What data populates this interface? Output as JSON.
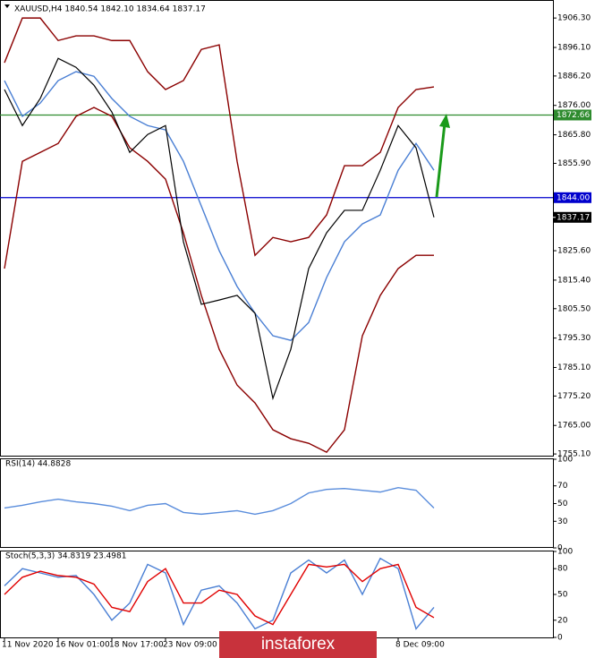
{
  "chart_data": [
    {
      "type": "line",
      "title": "XAUUSD,H4  1840.54 1842.10 1834.64 1837.17",
      "categories": [
        "11 Nov 2020",
        null,
        null,
        "16 Nov 01:00",
        null,
        null,
        "18 Nov 17:00",
        null,
        null,
        "23 Nov 09:00",
        null,
        null,
        null,
        null,
        null,
        null,
        null,
        null,
        null,
        null,
        null,
        null,
        "8 Dec 09:00",
        null,
        null
      ],
      "series": [
        {
          "color": "#8b0000",
          "values": [
            1890.8,
            1906.3,
            1906.3,
            1898.5,
            1900.1,
            1900.1,
            1898.5,
            1898.5,
            1887.7,
            1881.5,
            1884.6,
            1895.4,
            1897.0,
            1856.6,
            1824.0,
            1830.2,
            1828.7,
            1830.2,
            1838.0,
            1855.1,
            1855.1,
            1859.7,
            1875.3,
            1881.5,
            1882.4
          ]
        },
        {
          "color": "#8b0000",
          "values": [
            1819.4,
            1856.6,
            1859.7,
            1862.8,
            1872.2,
            1875.3,
            1872.2,
            1861.3,
            1856.6,
            1850.4,
            1831.8,
            1810.1,
            1791.4,
            1779.0,
            1772.8,
            1763.5,
            1760.4,
            1758.8,
            1755.7,
            1763.5,
            1796.1,
            1810.1,
            1819.4,
            1824.0,
            1824.0
          ]
        },
        {
          "color": "#4a7fd4",
          "values": [
            1884.6,
            1872.2,
            1876.8,
            1884.6,
            1887.7,
            1886.1,
            1878.4,
            1872.2,
            1869.0,
            1867.5,
            1856.6,
            1841.1,
            1825.6,
            1813.2,
            1803.9,
            1796.1,
            1794.5,
            1800.7,
            1816.3,
            1828.7,
            1834.9,
            1838.0,
            1853.5,
            1862.8,
            1853.5
          ]
        },
        {
          "color": "#000000",
          "values": [
            1881.5,
            1869.0,
            1878.4,
            1892.3,
            1889.2,
            1883.0,
            1873.7,
            1859.7,
            1865.9,
            1869.0,
            1828.7,
            1807.0,
            1808.5,
            1810.1,
            1803.9,
            1774.4,
            1791.4,
            1819.4,
            1831.8,
            1839.6,
            1839.6,
            1853.5,
            1869.0,
            1861.3,
            1837.17
          ]
        }
      ],
      "ylim": [
        1754.2,
        1911.0
      ],
      "yticks": [
        {
          "value": 1906.3,
          "label": "1906.30"
        },
        {
          "value": 1896.1,
          "label": "1896.10"
        },
        {
          "value": 1886.2,
          "label": "1886.20"
        },
        {
          "value": 1876,
          "label": "1876.00"
        },
        {
          "value": 1865.8,
          "label": "1865.80"
        },
        {
          "value": 1855.9,
          "label": "1855.90"
        },
        {
          "value": 1825.6,
          "label": "1825.60"
        },
        {
          "value": 1815.4,
          "label": "1815.40"
        },
        {
          "value": 1805.5,
          "label": "1805.50"
        },
        {
          "value": 1795.3,
          "label": "1795.30"
        },
        {
          "value": 1785.1,
          "label": "1785.10"
        },
        {
          "value": 1775.2,
          "label": "1775.20"
        },
        {
          "value": 1765,
          "label": "1765.00"
        },
        {
          "value": 1755.1,
          "label": "1755.10"
        }
      ],
      "hlines": [
        {
          "value": 1872.66,
          "color": "#2e8b2e"
        },
        {
          "value": 1844,
          "label": "1844.00",
          "color": "#0000cd"
        }
      ],
      "last_price": 1837.17
    },
    {
      "type": "line",
      "title": "RSI(14) 44.8828",
      "series": [
        {
          "color": "#5a8ddc",
          "values": [
            45,
            48,
            52,
            55,
            52,
            50,
            47,
            42,
            48,
            50,
            40,
            38,
            40,
            42,
            38,
            42,
            50,
            62,
            66,
            67,
            65,
            63,
            68,
            65,
            45
          ]
        }
      ],
      "ylim": [
        0,
        100
      ],
      "yticks": [
        100,
        70,
        50,
        30,
        0
      ]
    },
    {
      "type": "line",
      "title": "Stoch(5,3,3) 34.8319 23.4981",
      "series": [
        {
          "color": "#4a7fd4",
          "values": [
            60,
            80,
            75,
            70,
            72,
            50,
            20,
            40,
            85,
            75,
            15,
            55,
            60,
            40,
            10,
            20,
            75,
            90,
            75,
            90,
            50,
            92,
            80,
            10,
            35
          ]
        },
        {
          "color": "#e00000",
          "values": [
            50,
            70,
            77,
            72,
            70,
            62,
            35,
            30,
            65,
            80,
            40,
            40,
            55,
            50,
            25,
            15,
            50,
            85,
            82,
            85,
            65,
            80,
            85,
            35,
            23
          ]
        }
      ],
      "ylim": [
        0,
        100
      ],
      "yticks": [
        100,
        80,
        50,
        20,
        0
      ]
    }
  ],
  "watermark": "instaforex"
}
